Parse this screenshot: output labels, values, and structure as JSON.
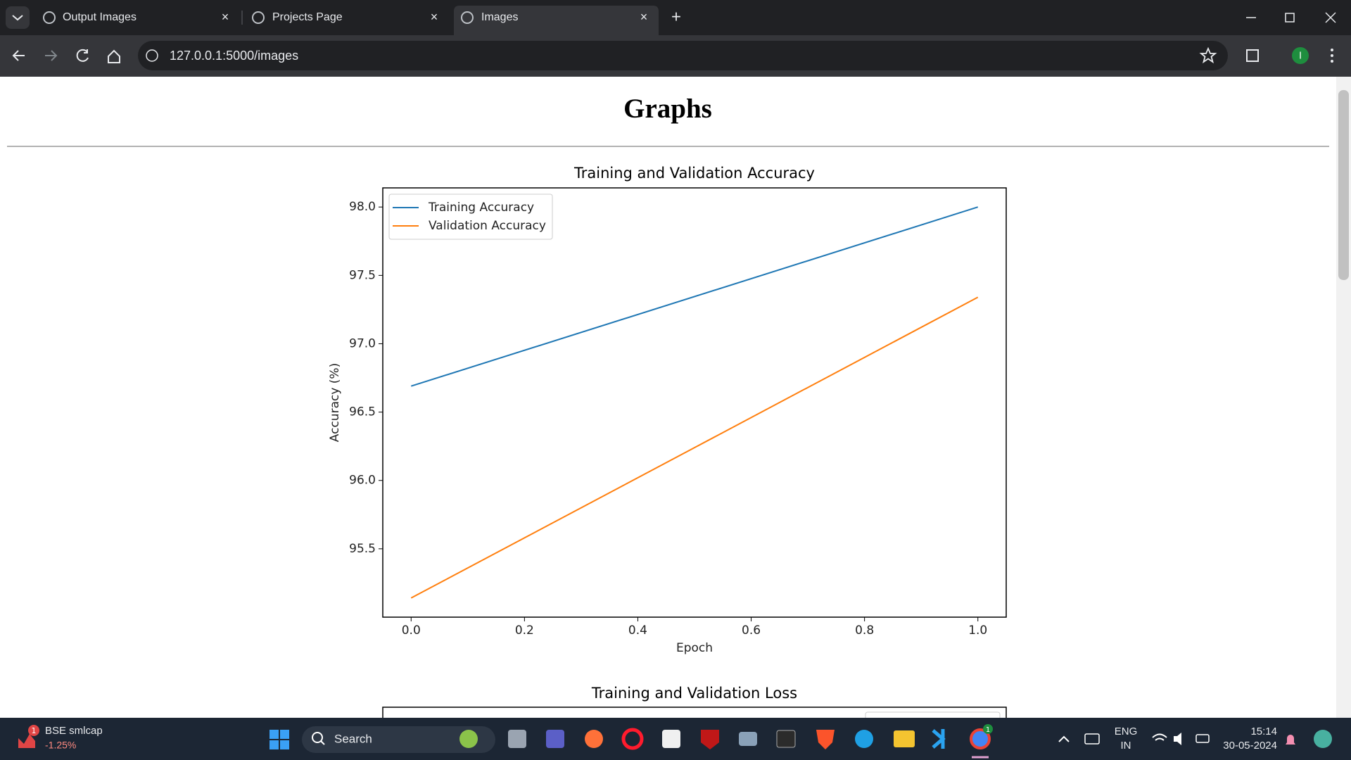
{
  "browser": {
    "tabs": [
      "Output Images",
      "Projects Page",
      "Images"
    ],
    "address": "127.0.0.1:5000/images",
    "profile": "I"
  },
  "page": {
    "heading": "Graphs",
    "next_chart_title": "Training and Validation Loss"
  },
  "chart_data": {
    "type": "line",
    "title": "Training and Validation Accuracy",
    "xlabel": "Epoch",
    "ylabel": "Accuracy (%)",
    "x": [
      0,
      1
    ],
    "series": [
      {
        "name": "Training Accuracy",
        "color": "#1f77b4",
        "values": [
          96.69,
          98.0
        ]
      },
      {
        "name": "Validation Accuracy",
        "color": "#ff7f0e",
        "values": [
          95.14,
          97.34
        ]
      }
    ],
    "xlim": [
      -0.05,
      1.05
    ],
    "ylim": [
      95.0,
      98.14
    ],
    "xticks": [
      {
        "value": 0,
        "label": "0.0"
      },
      {
        "value": 0.2,
        "label": "0.2"
      },
      {
        "value": 0.4,
        "label": "0.4"
      },
      {
        "value": 0.6,
        "label": "0.6"
      },
      {
        "value": 0.8,
        "label": "0.8"
      },
      {
        "value": 1,
        "label": "1.0"
      }
    ],
    "yticks": [
      {
        "value": 95.5,
        "label": "95.5"
      },
      {
        "value": 96,
        "label": "96.0"
      },
      {
        "value": 96.5,
        "label": "96.5"
      },
      {
        "value": 97,
        "label": "97.0"
      },
      {
        "value": 97.5,
        "label": "97.5"
      },
      {
        "value": 98,
        "label": "98.0"
      }
    ],
    "legend": "upper left",
    "grid": false
  },
  "taskbar": {
    "widget_badge": "1",
    "widget_title": "BSE smlcap",
    "widget_change": "-1.25%",
    "search": "Search",
    "language": "ENG",
    "region": "IN",
    "time": "15:14",
    "date": "30-05-2024",
    "chrome_badge": "1"
  }
}
